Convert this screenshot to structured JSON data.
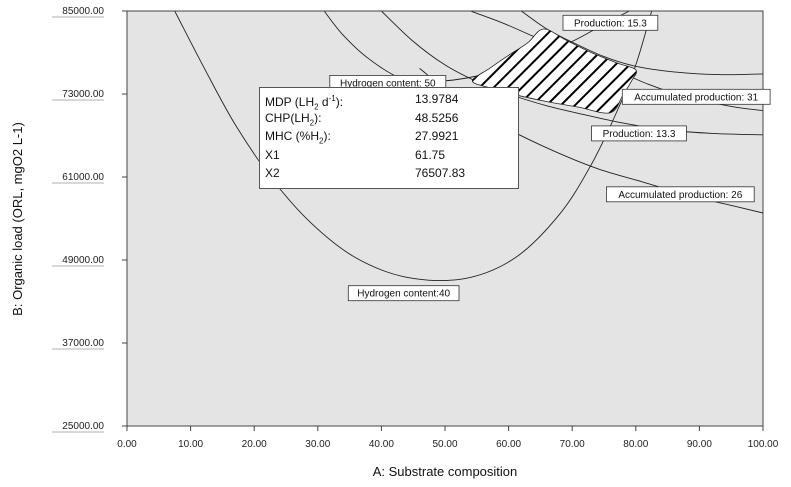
{
  "chart_data": {
    "type": "contour",
    "xlabel": "A: Substrate composition",
    "ylabel": "B: Organic load (ORL, mgO2 L-1)",
    "xlim": [
      0,
      100
    ],
    "ylim": [
      25000,
      85000
    ],
    "x_ticks": [
      "0.00",
      "10.00",
      "20.00",
      "30.00",
      "40.00",
      "50.00",
      "60.00",
      "70.00",
      "80.00",
      "90.00",
      "100.00"
    ],
    "y_ticks": [
      "25000.00",
      "37000.00",
      "49000.00",
      "61000.00",
      "73000.00",
      "85000.00"
    ],
    "grid": false,
    "contour_labels": [
      {
        "text": "Production: 15.3",
        "x": 76,
        "y": 83300
      },
      {
        "text": "Hydrogen content: 50",
        "x": 41,
        "y": 74600
      },
      {
        "text": "Accumulated production: 31",
        "x": 89.5,
        "y": 72600
      },
      {
        "text": "Production: 13.3",
        "x": 80.5,
        "y": 67300
      },
      {
        "text": "Accumulated production: 26",
        "x": 87,
        "y": 58500
      },
      {
        "text": "Hydrogen content:40",
        "x": 43.5,
        "y": 44200
      }
    ],
    "contours": [
      {
        "name": "hydrogen-content-40",
        "points": [
          [
            7.5,
            85000
          ],
          [
            12,
            77000
          ],
          [
            17,
            68600
          ],
          [
            23,
            60500
          ],
          [
            29,
            54300
          ],
          [
            36,
            49300
          ],
          [
            44,
            46500
          ],
          [
            53,
            46300
          ],
          [
            61,
            49300
          ],
          [
            68,
            55600
          ],
          [
            73,
            62800
          ],
          [
            77,
            70400
          ],
          [
            80,
            77200
          ],
          [
            82.5,
            85000
          ]
        ]
      },
      {
        "name": "hydrogen-content-50",
        "points": [
          [
            31,
            85000
          ],
          [
            34,
            81500
          ],
          [
            38,
            78100
          ],
          [
            43,
            75300
          ],
          [
            48,
            74800
          ],
          [
            55,
            75600
          ],
          [
            63,
            77900
          ],
          [
            70,
            80600
          ],
          [
            75,
            83100
          ],
          [
            79,
            85000
          ]
        ]
      },
      {
        "name": "production-15.3",
        "points": [
          [
            62,
            85000
          ],
          [
            66,
            82400
          ],
          [
            70,
            80500
          ],
          [
            75,
            78400
          ],
          [
            80,
            77000
          ],
          [
            86,
            76200
          ],
          [
            93,
            75800
          ],
          [
            100,
            75900
          ]
        ]
      },
      {
        "name": "production-13.3",
        "points": [
          [
            40,
            85000
          ],
          [
            45,
            80600
          ],
          [
            50,
            77200
          ],
          [
            55,
            74800
          ],
          [
            60,
            73000
          ],
          [
            66,
            71300
          ],
          [
            72,
            70000
          ],
          [
            78,
            68800
          ],
          [
            85,
            67800
          ],
          [
            92,
            67300
          ],
          [
            100,
            67100
          ]
        ]
      },
      {
        "name": "accumulated-production-31",
        "points": [
          [
            54,
            85000
          ],
          [
            59,
            83300
          ],
          [
            64,
            81300
          ],
          [
            70,
            79100
          ],
          [
            76,
            76800
          ],
          [
            82,
            74400
          ],
          [
            88,
            72600
          ],
          [
            95,
            71200
          ],
          [
            100,
            70600
          ]
        ]
      },
      {
        "name": "accumulated-production-26",
        "points": [
          [
            46,
            76700
          ],
          [
            53,
            71600
          ],
          [
            60,
            67900
          ],
          [
            67,
            64800
          ],
          [
            74,
            62200
          ],
          [
            81,
            60300
          ],
          [
            88,
            58400
          ],
          [
            95,
            56900
          ],
          [
            100,
            55800
          ]
        ]
      }
    ],
    "optimal_region": {
      "name": "hatched-optimal-region",
      "points": [
        [
          54.3,
          74900
        ],
        [
          57,
          76700
        ],
        [
          60,
          78600
        ],
        [
          63,
          80400
        ],
        [
          65.5,
          82400
        ],
        [
          69,
          80800
        ],
        [
          73,
          79000
        ],
        [
          77,
          77500
        ],
        [
          80,
          76500
        ],
        [
          79.4,
          75000
        ],
        [
          78,
          72900
        ],
        [
          76,
          70300
        ],
        [
          71,
          71100
        ],
        [
          66,
          71900
        ],
        [
          61,
          72900
        ],
        [
          57,
          73900
        ]
      ]
    },
    "info_box": {
      "rows": [
        {
          "name_prefix": "MDP (LH",
          "name_sub": "2",
          "name_mid": " d",
          "name_sup": "-1",
          "name_suffix": "):",
          "value": "13.9784"
        },
        {
          "name_prefix": "CHP(LH",
          "name_sub": "2",
          "name_mid": "",
          "name_sup": "",
          "name_suffix": "):",
          "value": "48.5256"
        },
        {
          "name_prefix": "MHC (%H",
          "name_sub": "2",
          "name_mid": "",
          "name_sup": "",
          "name_suffix": "):",
          "value": "27.9921"
        },
        {
          "name_prefix": "X1",
          "name_sub": "",
          "name_mid": "",
          "name_sup": "",
          "name_suffix": "",
          "value": "61.75"
        },
        {
          "name_prefix": "X2",
          "name_sub": "",
          "name_mid": "",
          "name_sup": "",
          "name_suffix": "",
          "value": "76507.83"
        }
      ]
    },
    "colors": {
      "plot_background": "#e4e4e4",
      "contour_line": "#222222",
      "hatch": "#000000"
    }
  }
}
